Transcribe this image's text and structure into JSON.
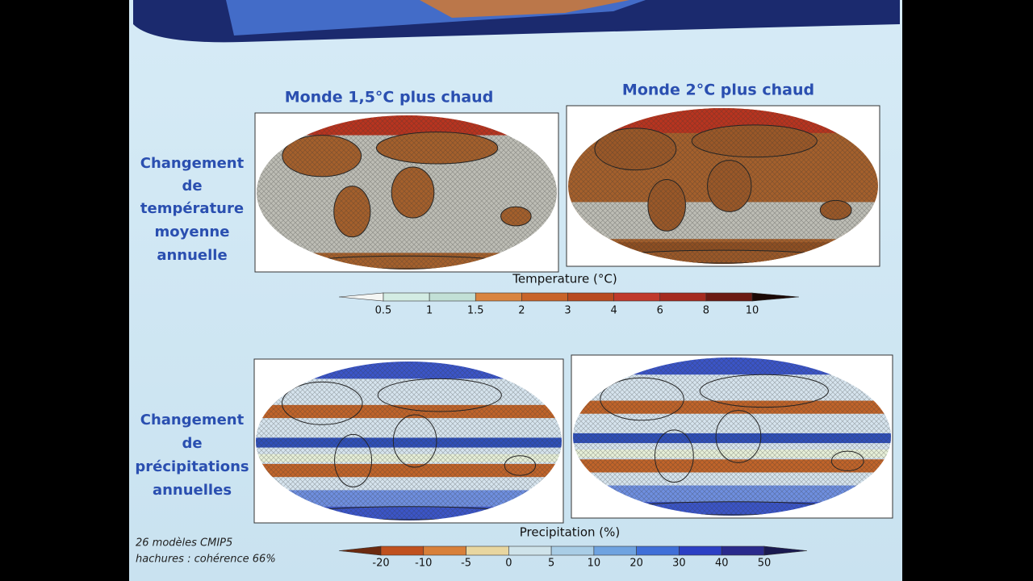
{
  "header": {
    "columns": [
      "Monde 1,5°C plus chaud",
      "Monde 2°C plus chaud"
    ]
  },
  "rows": [
    {
      "label": [
        "Changement",
        "de",
        "température",
        "moyenne",
        "annuelle"
      ],
      "colorbar": {
        "title": "Temperature (°C)",
        "ticks": [
          0.5,
          1,
          1.5,
          2,
          3,
          4,
          6,
          8,
          10
        ]
      }
    },
    {
      "label": [
        "Changement",
        "de",
        "précipitations",
        "annuelles"
      ],
      "colorbar": {
        "title": "Precipitation (%)",
        "ticks": [
          -20,
          -10,
          -5,
          0,
          5,
          10,
          20,
          30,
          40,
          50
        ]
      }
    }
  ],
  "footnote": [
    "26 modèles CMIP5",
    "hachures : cohérence 66%"
  ]
}
